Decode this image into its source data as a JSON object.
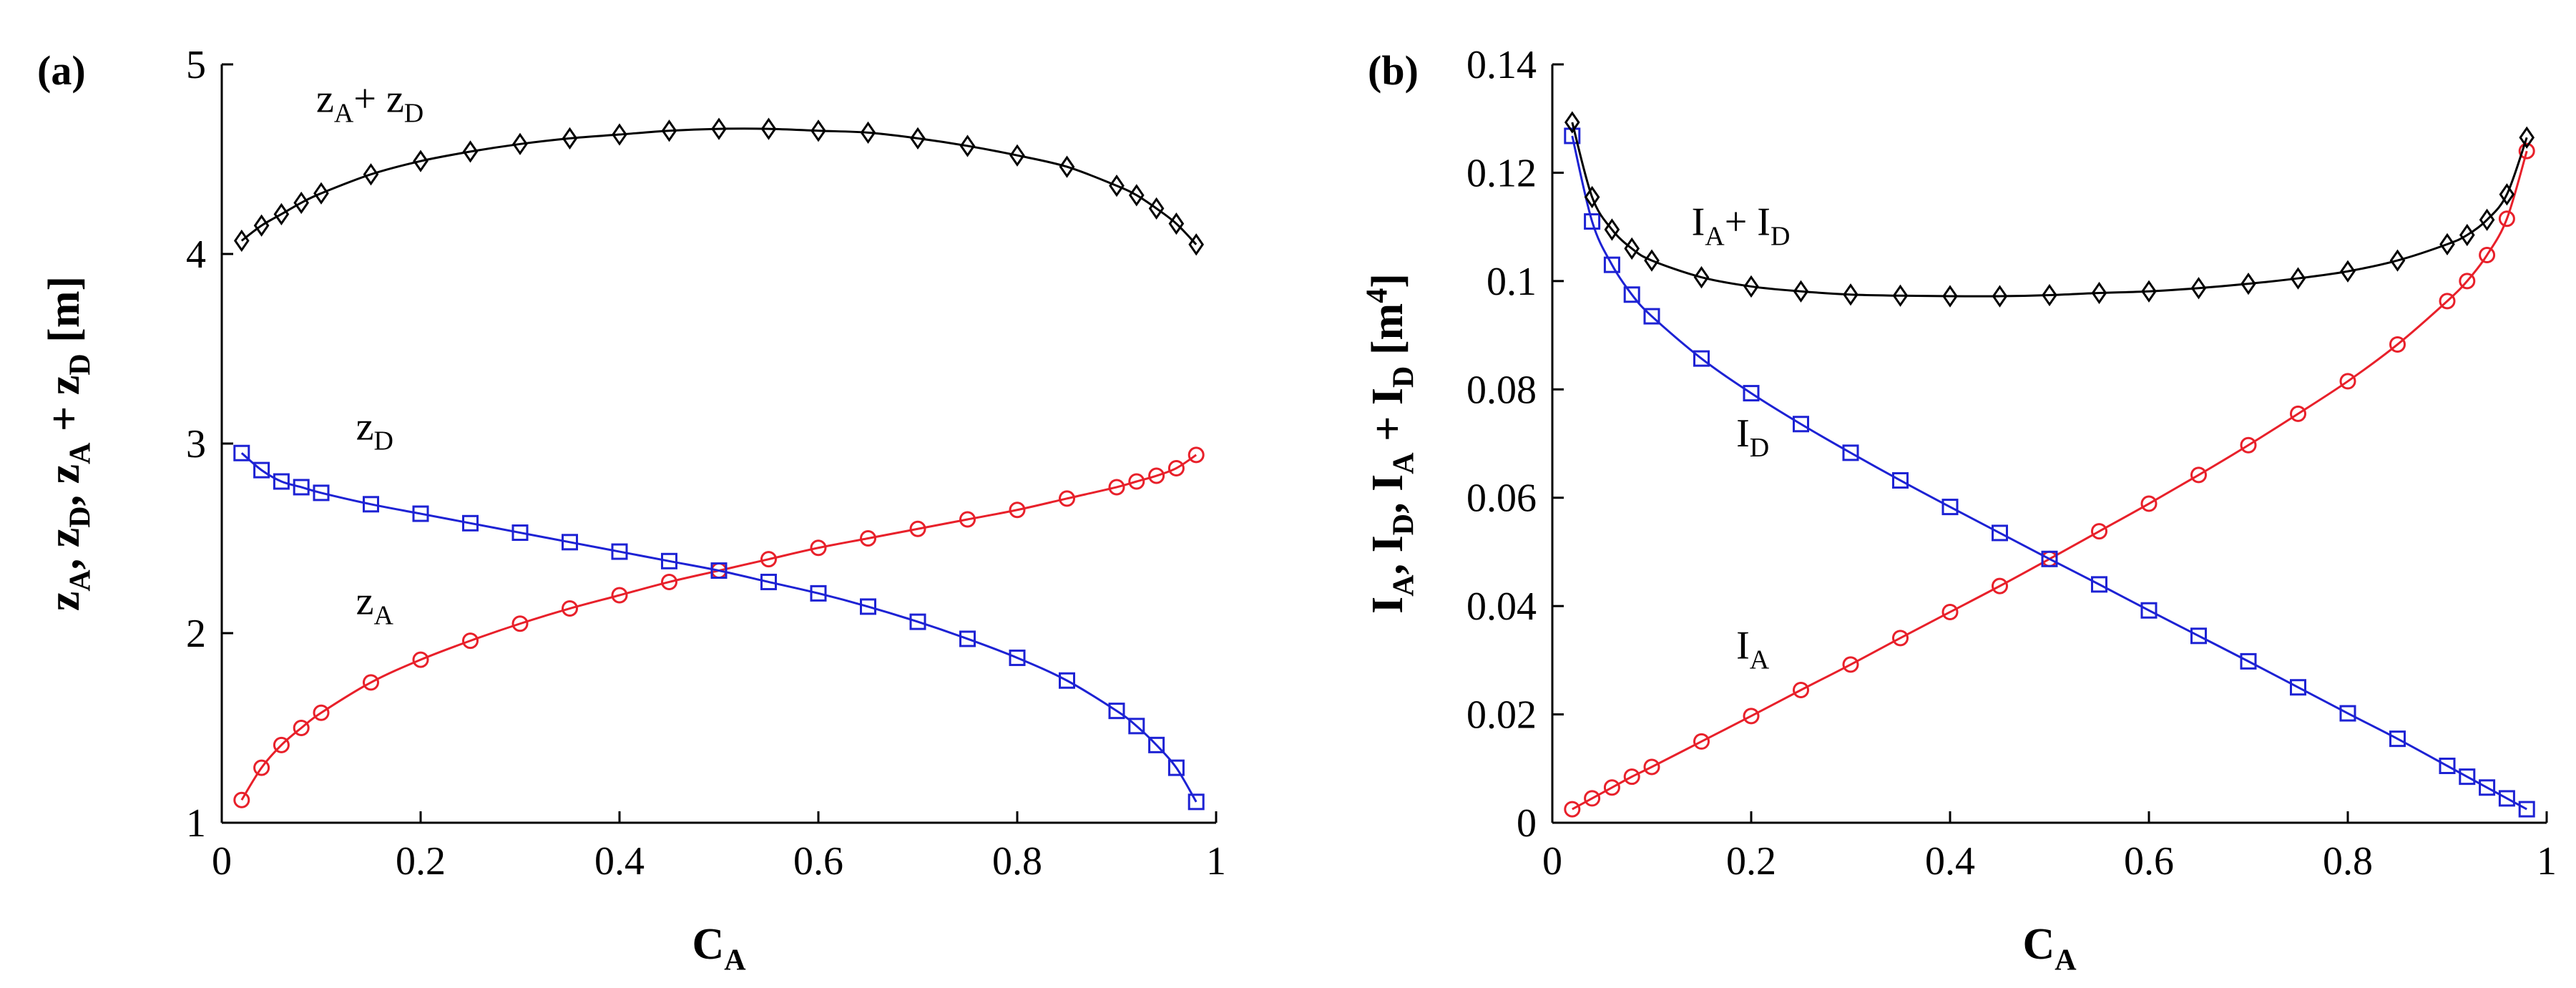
{
  "chart_data": [
    {
      "type": "line",
      "panel_label": "(a)",
      "xlabel": "C",
      "xlabel_sub": "A",
      "ylabel_parts": [
        {
          "t": "z",
          "sub": "A"
        },
        {
          "t": ", z",
          "sub": "D"
        },
        {
          "t": ", z",
          "sub": "A"
        },
        {
          "t": " + z",
          "sub": "D"
        },
        {
          "t": " [m]"
        }
      ],
      "xlim": [
        0,
        1
      ],
      "ylim": [
        1,
        5
      ],
      "xticks": [
        "0",
        "0.2",
        "0.4",
        "0.6",
        "0.8",
        "1"
      ],
      "yticks": [
        "1",
        "2",
        "3",
        "4",
        "5"
      ],
      "x": [
        0.02,
        0.04,
        0.06,
        0.08,
        0.1,
        0.15,
        0.2,
        0.25,
        0.3,
        0.35,
        0.4,
        0.45,
        0.5,
        0.55,
        0.6,
        0.65,
        0.7,
        0.75,
        0.8,
        0.85,
        0.9,
        0.92,
        0.94,
        0.96,
        0.98
      ],
      "series": [
        {
          "name": "zA",
          "color": "#e8202a",
          "marker": "circle",
          "values": [
            1.12,
            1.29,
            1.41,
            1.5,
            1.58,
            1.74,
            1.86,
            1.96,
            2.05,
            2.13,
            2.2,
            2.27,
            2.33,
            2.39,
            2.45,
            2.5,
            2.55,
            2.6,
            2.65,
            2.71,
            2.77,
            2.8,
            2.83,
            2.87,
            2.94
          ]
        },
        {
          "name": "zD",
          "color": "#1d22d4",
          "marker": "square",
          "values": [
            2.95,
            2.86,
            2.8,
            2.77,
            2.74,
            2.68,
            2.63,
            2.58,
            2.53,
            2.48,
            2.43,
            2.38,
            2.33,
            2.27,
            2.21,
            2.14,
            2.06,
            1.97,
            1.87,
            1.75,
            1.59,
            1.51,
            1.41,
            1.29,
            1.11
          ]
        },
        {
          "name": "zA+zD",
          "color": "#000000",
          "marker": "diamond",
          "values": [
            4.07,
            4.15,
            4.21,
            4.27,
            4.32,
            4.42,
            4.49,
            4.54,
            4.58,
            4.61,
            4.63,
            4.65,
            4.66,
            4.66,
            4.65,
            4.64,
            4.61,
            4.57,
            4.52,
            4.46,
            4.36,
            4.31,
            4.24,
            4.16,
            4.05
          ]
        }
      ],
      "annotations": [
        {
          "parts": [
            {
              "t": "z",
              "sub": "A"
            },
            {
              "t": "+ z",
              "sub": "D"
            }
          ],
          "x": 0.095,
          "y": 4.75
        },
        {
          "parts": [
            {
              "t": "z",
              "sub": "D"
            }
          ],
          "x": 0.135,
          "y": 3.02
        },
        {
          "parts": [
            {
              "t": "z",
              "sub": "A"
            }
          ],
          "x": 0.135,
          "y": 2.1
        }
      ]
    },
    {
      "type": "line",
      "panel_label": "(b)",
      "xlabel": "C",
      "xlabel_sub": "A",
      "ylabel_parts": [
        {
          "t": "I",
          "sub": "A"
        },
        {
          "t": ", I",
          "sub": "D"
        },
        {
          "t": ", I",
          "sub": "A"
        },
        {
          "t": " + I",
          "sub": "D"
        },
        {
          "t": " [m"
        },
        {
          "t": "4",
          "sup": true
        },
        {
          "t": "]"
        }
      ],
      "xlim": [
        0,
        1
      ],
      "ylim": [
        0,
        0.14
      ],
      "xticks": [
        "0",
        "0.2",
        "0.4",
        "0.6",
        "0.8",
        "1"
      ],
      "yticks": [
        "0",
        "0.02",
        "0.04",
        "0.06",
        "0.08",
        "0.1",
        "0.12",
        "0.14"
      ],
      "x": [
        0.02,
        0.04,
        0.06,
        0.08,
        0.1,
        0.15,
        0.2,
        0.25,
        0.3,
        0.35,
        0.4,
        0.45,
        0.5,
        0.55,
        0.6,
        0.65,
        0.7,
        0.75,
        0.8,
        0.85,
        0.9,
        0.92,
        0.94,
        0.96,
        0.98
      ],
      "series": [
        {
          "name": "IA",
          "color": "#e8202a",
          "marker": "circle",
          "values": [
            0.0025,
            0.0045,
            0.0065,
            0.0085,
            0.0103,
            0.015,
            0.0197,
            0.0245,
            0.0292,
            0.0341,
            0.0389,
            0.0437,
            0.0487,
            0.0538,
            0.0589,
            0.0642,
            0.0697,
            0.0755,
            0.0815,
            0.0883,
            0.0963,
            0.1,
            0.1048,
            0.1115,
            0.124
          ]
        },
        {
          "name": "ID",
          "color": "#1d22d4",
          "marker": "square",
          "values": [
            0.1268,
            0.111,
            0.103,
            0.0975,
            0.0935,
            0.0857,
            0.0793,
            0.0736,
            0.0683,
            0.0632,
            0.0583,
            0.0535,
            0.0487,
            0.044,
            0.0392,
            0.0345,
            0.0298,
            0.025,
            0.0202,
            0.0155,
            0.0105,
            0.0085,
            0.0065,
            0.0045,
            0.0025
          ]
        },
        {
          "name": "IA+ID",
          "color": "#000000",
          "marker": "diamond",
          "values": [
            0.1293,
            0.1155,
            0.1095,
            0.106,
            0.1038,
            0.1007,
            0.099,
            0.0981,
            0.0975,
            0.0973,
            0.0972,
            0.0972,
            0.0974,
            0.0978,
            0.0981,
            0.0987,
            0.0995,
            0.1005,
            0.1018,
            0.1038,
            0.1068,
            0.1085,
            0.1113,
            0.116,
            0.1265
          ]
        }
      ],
      "annotations": [
        {
          "parts": [
            {
              "t": "I",
              "sub": "A"
            },
            {
              "t": "+ I",
              "sub": "D"
            }
          ],
          "x": 0.14,
          "y": 0.1085
        },
        {
          "parts": [
            {
              "t": "I",
              "sub": "D"
            }
          ],
          "x": 0.185,
          "y": 0.0695
        },
        {
          "parts": [
            {
              "t": "I",
              "sub": "A"
            }
          ],
          "x": 0.185,
          "y": 0.0303
        }
      ]
    }
  ]
}
